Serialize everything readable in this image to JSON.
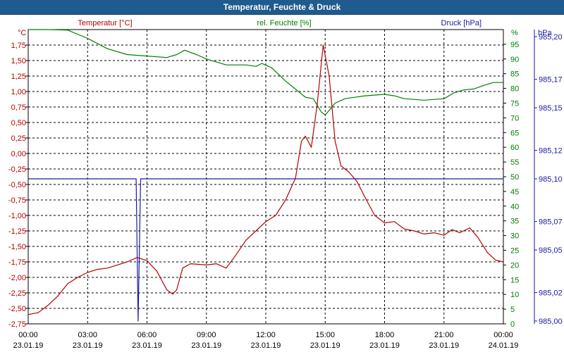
{
  "window": {
    "title": "Temperatur, Feuchte & Druck"
  },
  "colors": {
    "temperature": "#b40000",
    "humidity": "#008000",
    "pressure": "#1a1aa0",
    "titlebar": "#1f5b8e",
    "grid": "#000000"
  },
  "chart_data": {
    "type": "line",
    "title": "Temperatur, Feuchte & Druck",
    "grid": true,
    "x_ticks": [
      {
        "time": "00:00",
        "date": "23.01.19"
      },
      {
        "time": "03:00",
        "date": "23.01.19"
      },
      {
        "time": "06:00",
        "date": "23.01.19"
      },
      {
        "time": "09:00",
        "date": "23.01.19"
      },
      {
        "time": "12:00",
        "date": "23.01.19"
      },
      {
        "time": "15:00",
        "date": "23.01.19"
      },
      {
        "time": "18:00",
        "date": "23.01.19"
      },
      {
        "time": "21:00",
        "date": "23.01.19"
      },
      {
        "time": "00:00",
        "date": "24.01.19"
      }
    ],
    "x_range_hours": [
      0,
      24
    ],
    "axes": {
      "temperature": {
        "label": "Temperatur [°C]",
        "unit": "°C",
        "ylim": [
          -2.75,
          2.0
        ],
        "ticks": [
          "-2,75",
          "-2,50",
          "-2,25",
          "-2,00",
          "-1,75",
          "-1,50",
          "-1,25",
          "-1,00",
          "-0,75",
          "-0,50",
          "-0,25",
          "0,00",
          "0,25",
          "0,50",
          "0,75",
          "1,00",
          "1,25",
          "1,50",
          "1,75"
        ]
      },
      "humidity": {
        "label": "rel. Feuchte [%]",
        "unit": "%",
        "ylim": [
          0,
          100
        ],
        "ticks": [
          "0",
          "5",
          "10",
          "15",
          "20",
          "25",
          "30",
          "35",
          "40",
          "45",
          "50",
          "55",
          "60",
          "65",
          "70",
          "75",
          "80",
          "85",
          "90",
          "95"
        ]
      },
      "pressure": {
        "label": "Druck [hPa]",
        "unit": "hPa",
        "ylim": [
          984.998,
          985.205
        ],
        "ticks": [
          "985,00",
          "985,02",
          "985,05",
          "985,07",
          "985,10",
          "985,12",
          "985,15",
          "985,17",
          "985,20"
        ]
      }
    },
    "series": [
      {
        "name": "Temperatur [°C]",
        "axis": "temperature",
        "points": [
          [
            0,
            -2.6
          ],
          [
            0.5,
            -2.57
          ],
          [
            1,
            -2.45
          ],
          [
            1.5,
            -2.3
          ],
          [
            2,
            -2.1
          ],
          [
            2.5,
            -2.0
          ],
          [
            3,
            -1.92
          ],
          [
            3.5,
            -1.87
          ],
          [
            4,
            -1.85
          ],
          [
            4.5,
            -1.8
          ],
          [
            5,
            -1.75
          ],
          [
            5.5,
            -1.68
          ],
          [
            6,
            -1.73
          ],
          [
            6.5,
            -1.9
          ],
          [
            7,
            -2.2
          ],
          [
            7.3,
            -2.27
          ],
          [
            7.5,
            -2.2
          ],
          [
            7.8,
            -1.85
          ],
          [
            8.2,
            -1.78
          ],
          [
            9,
            -1.8
          ],
          [
            9.5,
            -1.78
          ],
          [
            10,
            -1.85
          ],
          [
            10.4,
            -1.68
          ],
          [
            11,
            -1.4
          ],
          [
            11.5,
            -1.25
          ],
          [
            12,
            -1.1
          ],
          [
            12.5,
            -1.0
          ],
          [
            13,
            -0.75
          ],
          [
            13.5,
            -0.4
          ],
          [
            13.8,
            0.2
          ],
          [
            14,
            0.28
          ],
          [
            14.3,
            0.1
          ],
          [
            14.6,
            0.8
          ],
          [
            14.9,
            1.75
          ],
          [
            15.2,
            1.25
          ],
          [
            15.5,
            0.2
          ],
          [
            15.8,
            -0.2
          ],
          [
            16.2,
            -0.3
          ],
          [
            16.6,
            -0.45
          ],
          [
            17,
            -0.7
          ],
          [
            17.5,
            -1.0
          ],
          [
            18,
            -1.12
          ],
          [
            18.5,
            -1.1
          ],
          [
            19,
            -1.22
          ],
          [
            19.5,
            -1.25
          ],
          [
            20,
            -1.3
          ],
          [
            20.5,
            -1.28
          ],
          [
            21,
            -1.32
          ],
          [
            21.4,
            -1.23
          ],
          [
            21.8,
            -1.28
          ],
          [
            22.3,
            -1.2
          ],
          [
            22.7,
            -1.35
          ],
          [
            23.2,
            -1.6
          ],
          [
            23.6,
            -1.72
          ],
          [
            24,
            -1.75
          ]
        ]
      },
      {
        "name": "rel. Feuchte [%]",
        "axis": "humidity",
        "points": [
          [
            0,
            100
          ],
          [
            1,
            100
          ],
          [
            2,
            99.8
          ],
          [
            3,
            97
          ],
          [
            4,
            93.5
          ],
          [
            5,
            91.5
          ],
          [
            6,
            91
          ],
          [
            7,
            90.5
          ],
          [
            7.5,
            91.5
          ],
          [
            7.9,
            93
          ],
          [
            8.5,
            91.5
          ],
          [
            9,
            90
          ],
          [
            10,
            88
          ],
          [
            11,
            88
          ],
          [
            11.5,
            87.5
          ],
          [
            11.8,
            88.5
          ],
          [
            12.3,
            87
          ],
          [
            13,
            82.5
          ],
          [
            14,
            77
          ],
          [
            14.4,
            76.5
          ],
          [
            14.8,
            72
          ],
          [
            15,
            71
          ],
          [
            15.2,
            72.5
          ],
          [
            15.5,
            75
          ],
          [
            16,
            76.5
          ],
          [
            17,
            77.5
          ],
          [
            18,
            78
          ],
          [
            18.5,
            77.5
          ],
          [
            19,
            76.5
          ],
          [
            20,
            76
          ],
          [
            21,
            76.5
          ],
          [
            21.5,
            78.5
          ],
          [
            22,
            79.5
          ],
          [
            22.5,
            79.8
          ],
          [
            23,
            81
          ],
          [
            23.5,
            82
          ],
          [
            24,
            82
          ]
        ]
      },
      {
        "name": "Druck [hPa]",
        "axis": "pressure",
        "points": [
          [
            0,
            985.1
          ],
          [
            5.45,
            985.1
          ],
          [
            5.55,
            985.0
          ],
          [
            5.68,
            985.1
          ],
          [
            24,
            985.1
          ]
        ]
      }
    ]
  }
}
